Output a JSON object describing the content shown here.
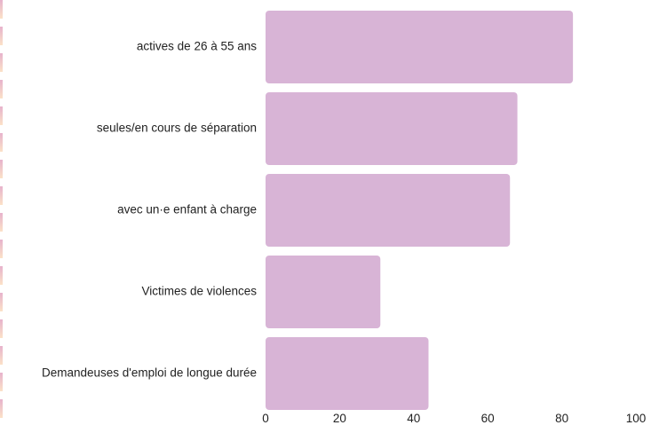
{
  "chart_data": {
    "type": "bar",
    "orientation": "horizontal",
    "categories": [
      "actives de 26 à 55 ans",
      "seules/en cours de séparation",
      "avec un·e enfant à charge",
      "Victimes de violences",
      "Demandeuses d'emploi de longue durée"
    ],
    "values": [
      83,
      68,
      66,
      31,
      44
    ],
    "xlim": [
      0,
      100
    ],
    "xticks": [
      "0",
      "20",
      "40",
      "60",
      "80",
      "100"
    ],
    "grid": false,
    "bar_color": "#d8b4d6"
  },
  "decor": {
    "edge_gradient": [
      "#e7b3cc",
      "#fbe2c8"
    ]
  }
}
